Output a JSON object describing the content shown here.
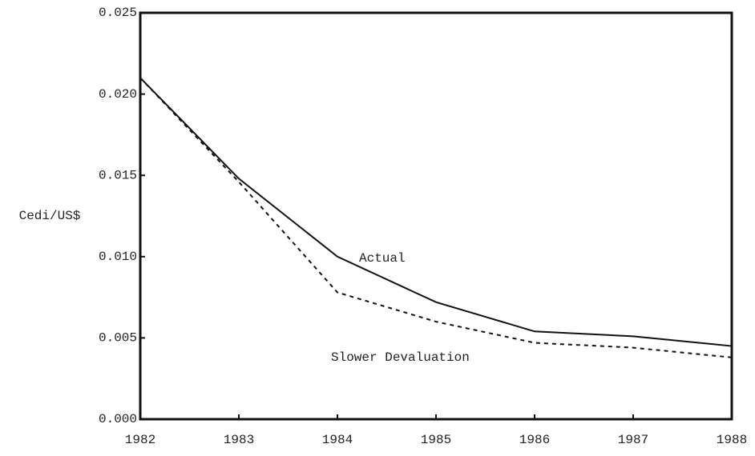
{
  "chart_data": {
    "type": "line",
    "y_label": "Cedi/US$",
    "x": [
      1982,
      1983,
      1984,
      1985,
      1986,
      1987,
      1988
    ],
    "series": [
      {
        "name": "Actual",
        "color": "#111111",
        "line_style": "solid",
        "values": [
          0.021,
          0.0148,
          0.01,
          0.0072,
          0.0054,
          0.0051,
          0.0045
        ]
      },
      {
        "name": "Slower Devaluation",
        "color": "#111111",
        "line_style": "dashed",
        "values": [
          0.021,
          0.0146,
          0.0078,
          0.006,
          0.0047,
          0.0044,
          0.0038
        ]
      }
    ],
    "annotations": [
      "Actual",
      "Slower Devaluation"
    ],
    "xlim": [
      1982,
      1988
    ],
    "xticks": [
      1982,
      1983,
      1984,
      1985,
      1986,
      1987,
      1988
    ],
    "ylim": [
      0,
      0.025
    ],
    "yticks": [
      {
        "value": 0,
        "label": "0.000"
      },
      0.005,
      {
        "value": 0.01,
        "label": "0.010"
      },
      0.015,
      {
        "value": 0.02,
        "label": "0.020"
      },
      0.025
    ],
    "grid": false
  }
}
